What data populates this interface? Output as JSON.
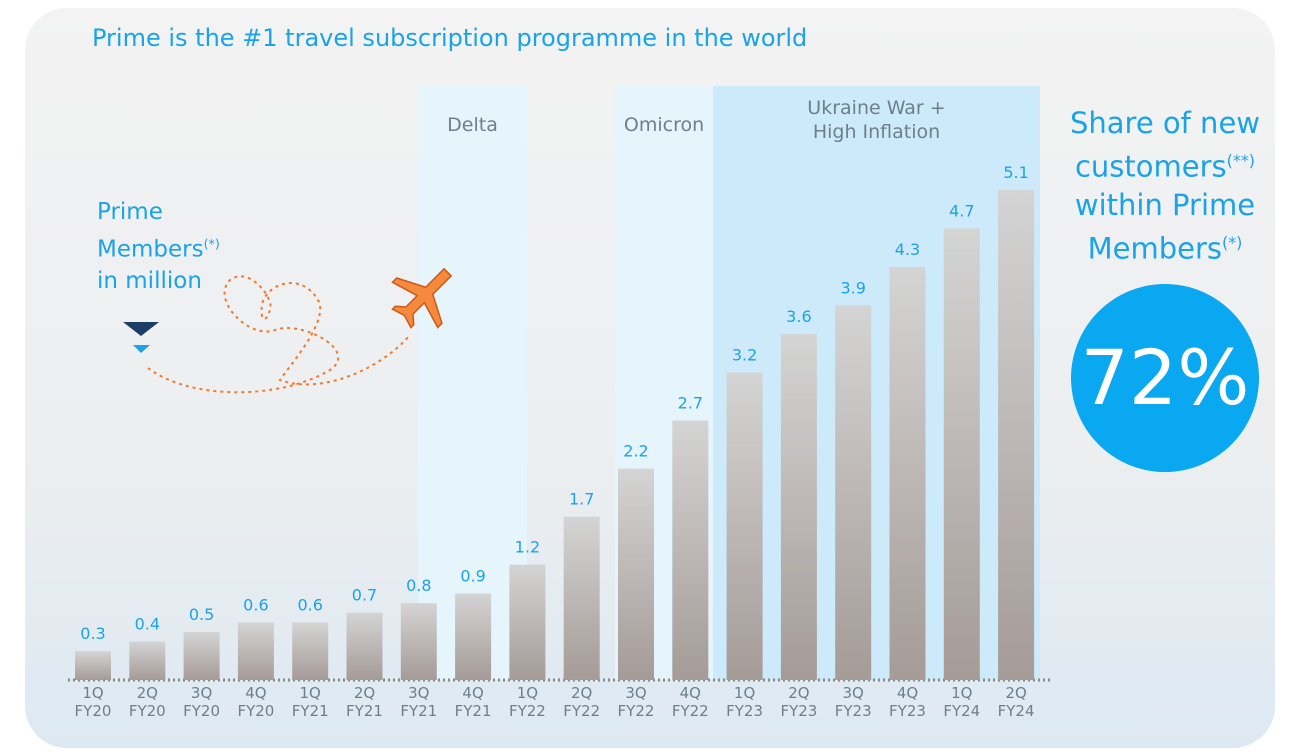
{
  "chart_data": {
    "type": "bar",
    "title": "Prime is the #1 travel subscription programme in the world",
    "categories": [
      "1Q\nFY20",
      "2Q\nFY20",
      "3Q\nFY20",
      "4Q\nFY20",
      "1Q\nFY21",
      "2Q\nFY21",
      "3Q\nFY21",
      "4Q\nFY21",
      "1Q\nFY22",
      "2Q\nFY22",
      "3Q\nFY22",
      "4Q\nFY22",
      "1Q\nFY23",
      "2Q\nFY23",
      "3Q\nFY23",
      "4Q\nFY23",
      "1Q\nFY24",
      "2Q\nFY24"
    ],
    "values": [
      0.3,
      0.4,
      0.5,
      0.6,
      0.6,
      0.7,
      0.8,
      0.9,
      1.2,
      1.7,
      2.2,
      2.7,
      3.2,
      3.6,
      3.9,
      4.3,
      4.7,
      5.1
    ],
    "color": "#b5b0ae",
    "label_color": "#1aa3e8",
    "y_label": {
      "line1": "Prime",
      "line2": "Members",
      "note": "(*)",
      "line3": "in million"
    },
    "annotations": [
      "Delta",
      "Omicron",
      "Ukraine War +\nHigh Inflation"
    ],
    "callout": {
      "line1": "Share of new",
      "line2": "customers",
      "note2": "(**)",
      "line3": "within Prime",
      "line4": "Members",
      "note4": "(*)",
      "value": "72%"
    }
  }
}
